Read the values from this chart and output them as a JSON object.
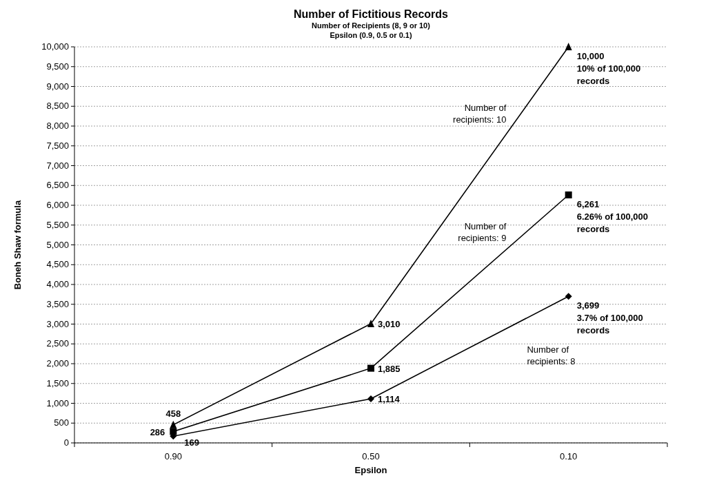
{
  "chart_data": {
    "type": "line",
    "title": "Number of Fictitious Records",
    "subtitle": "Number of Recipients (8, 9 or 10)\nEpsilon (0.9, 0.5 or 0.1)",
    "xlabel": "Epsilon",
    "ylabel": "Boneh Shaw formula",
    "categories": [
      "0.90",
      "0.50",
      "0.10"
    ],
    "series": [
      {
        "name": "Number of recipients: 8",
        "color": "#000000",
        "marker": "diamond",
        "values": [
          169,
          1114,
          3699
        ],
        "value_labels": [
          "169",
          "1,114",
          "3,699"
        ]
      },
      {
        "name": "Number of recipients: 9",
        "color": "#000000",
        "marker": "square",
        "values": [
          286,
          1885,
          6261
        ],
        "value_labels": [
          "286",
          "1,885",
          "6,261"
        ]
      },
      {
        "name": "Number of recipients: 10",
        "color": "#000000",
        "marker": "triangle",
        "values": [
          458,
          3010,
          10000
        ],
        "value_labels": [
          "458",
          "3,010",
          "10,000"
        ]
      }
    ],
    "annotations": [
      "3.7% of 100,000 records",
      "6.26% of 100,000 records",
      "10% of 100,000 records"
    ],
    "ylim": [
      0,
      10000
    ],
    "yticks": [
      {
        "value": 0,
        "label": "0"
      },
      {
        "value": 500,
        "label": "500"
      },
      {
        "value": 1000,
        "label": "1,000"
      },
      {
        "value": 1500,
        "label": "1,500"
      },
      {
        "value": 2000,
        "label": "2,000"
      },
      {
        "value": 2500,
        "label": "2,500"
      },
      {
        "value": 3000,
        "label": "3,000"
      },
      {
        "value": 3500,
        "label": "3,500"
      },
      {
        "value": 4000,
        "label": "4,000"
      },
      {
        "value": 4500,
        "label": "4,500"
      },
      {
        "value": 5000,
        "label": "5,000"
      },
      {
        "value": 5500,
        "label": "5,500"
      },
      {
        "value": 6000,
        "label": "6,000"
      },
      {
        "value": 6500,
        "label": "6,500"
      },
      {
        "value": 7000,
        "label": "7,000"
      },
      {
        "value": 7500,
        "label": "7,500"
      },
      {
        "value": 8000,
        "label": "8,000"
      },
      {
        "value": 8500,
        "label": "8,500"
      },
      {
        "value": 9000,
        "label": "9,000"
      },
      {
        "value": 9500,
        "label": "9,500"
      },
      {
        "value": 10000,
        "label": "10,000"
      }
    ],
    "grid": "y",
    "line_style": "solid"
  }
}
